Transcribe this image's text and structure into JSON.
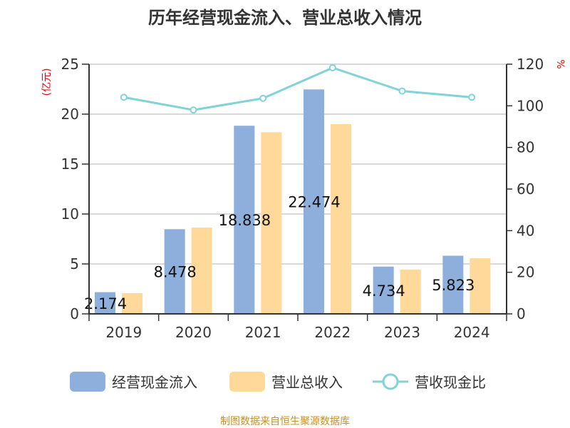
{
  "chart_data": {
    "type": "bar",
    "title": "历年经营现金流入、营业总收入情况",
    "categories": [
      "2019",
      "2020",
      "2021",
      "2022",
      "2023",
      "2024"
    ],
    "ylabel": "(亿元)",
    "y2label": "%",
    "ylim": [
      0,
      25
    ],
    "y2lim": [
      0,
      120
    ],
    "yticks": [
      "0",
      "5",
      "10",
      "15",
      "20",
      "25"
    ],
    "y2ticks": [
      "0",
      "20",
      "40",
      "60",
      "80",
      "100",
      "120"
    ],
    "series": [
      {
        "name": "经营现金流入",
        "type": "bar",
        "axis": "left",
        "color": "#8eaedb",
        "values": [
          2.174,
          8.478,
          18.838,
          22.474,
          4.734,
          5.823
        ],
        "labels": [
          "2.174",
          "8.478",
          "18.838",
          "22.474",
          "4.734",
          "5.823"
        ]
      },
      {
        "name": "营业总收入",
        "type": "bar",
        "axis": "left",
        "color": "#ffd99a",
        "values": [
          2.07,
          8.64,
          18.19,
          19.0,
          4.43,
          5.57
        ]
      },
      {
        "name": "营收现金比",
        "type": "line",
        "axis": "right",
        "color": "#82d3d8",
        "values": [
          104.1,
          98.0,
          103.6,
          118.3,
          107.1,
          104.1
        ]
      }
    ],
    "legend_position": "bottom",
    "grid": true
  },
  "source": "制图数据来自恒生聚源数据库"
}
